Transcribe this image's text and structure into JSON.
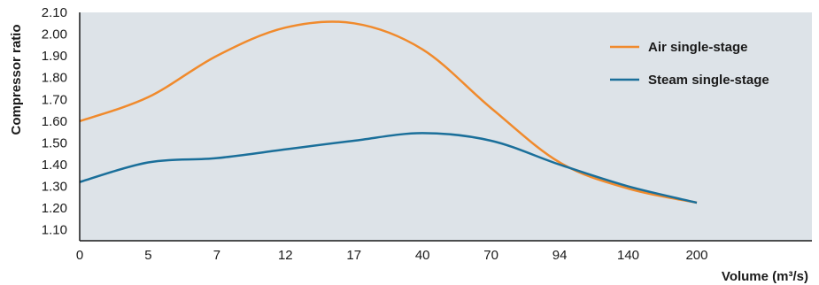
{
  "chart_data": {
    "type": "line",
    "ylabel": "Compressor ratio",
    "xlabel": "Volume (m³/s)",
    "x_categories": [
      "0",
      "5",
      "7",
      "12",
      "17",
      "40",
      "70",
      "94",
      "140",
      "200"
    ],
    "x_scale": "categorical (uneven spacing of numeric volumes)",
    "ylim": [
      1.05,
      2.1
    ],
    "yticks": [
      "2.10",
      "2.00",
      "1.90",
      "1.80",
      "1.70",
      "1.60",
      "1.50",
      "1.40",
      "1.30",
      "1.20",
      "1.10"
    ],
    "grid": false,
    "background_color": "#dde3e8",
    "legend_position": "top-right",
    "series": [
      {
        "name": "Air single-stage",
        "color": "#f08a2c",
        "points": [
          {
            "x": "0",
            "y": 1.6
          },
          {
            "x": "5",
            "y": 1.71
          },
          {
            "x": "7",
            "y": 1.9
          },
          {
            "x": "12",
            "y": 2.03
          },
          {
            "x": "17",
            "y": 2.05
          },
          {
            "x": "40",
            "y": 1.93
          },
          {
            "x": "70",
            "y": 1.66
          },
          {
            "x": "94",
            "y": 1.41
          },
          {
            "x": "140",
            "y": 1.29
          },
          {
            "x": "200",
            "y": 1.225
          }
        ]
      },
      {
        "name": "Steam single-stage",
        "color": "#1a6f9a",
        "points": [
          {
            "x": "0",
            "y": 1.32
          },
          {
            "x": "5",
            "y": 1.41
          },
          {
            "x": "7",
            "y": 1.43
          },
          {
            "x": "12",
            "y": 1.47
          },
          {
            "x": "17",
            "y": 1.51
          },
          {
            "x": "40",
            "y": 1.545
          },
          {
            "x": "70",
            "y": 1.51
          },
          {
            "x": "94",
            "y": 1.4
          },
          {
            "x": "140",
            "y": 1.3
          },
          {
            "x": "200",
            "y": 1.225
          }
        ]
      }
    ]
  }
}
